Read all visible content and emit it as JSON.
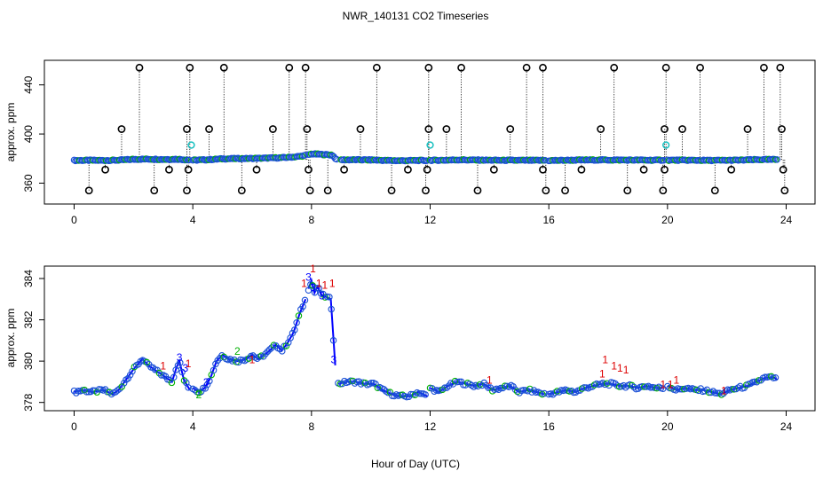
{
  "title": "NWR_140131  CO2 Timeseries",
  "xlabel": "Hour of Day (UTC)",
  "colors": {
    "primary": "#0000ff",
    "ring": "#1a4fd6",
    "green": "#00b000",
    "red": "#dd0000",
    "cyan": "#19c0c0",
    "outlier": "#000000"
  },
  "chart_data": [
    {
      "type": "scatter",
      "panel": "top",
      "title": "",
      "xlabel": "",
      "ylabel": "approx. ppm",
      "xlim": [
        0,
        24
      ],
      "ylim": [
        343,
        460
      ],
      "xticks": [
        0,
        4,
        8,
        12,
        16,
        20,
        24
      ],
      "yticks": [
        360,
        400,
        440
      ],
      "baseline_segments": [
        {
          "x": [
            0.0,
            0.5,
            1.0,
            1.5,
            2.0,
            2.5,
            3.0,
            3.5,
            3.9
          ],
          "y": [
            378.5,
            378.6,
            378.5,
            378.7,
            379.4,
            379.6,
            379.3,
            379.5,
            378.8
          ]
        },
        {
          "x": [
            4.0,
            4.5,
            5.0,
            5.5,
            6.0,
            6.5,
            7.0,
            7.5,
            7.8
          ],
          "y": [
            378.7,
            379.1,
            379.8,
            380.0,
            380.1,
            380.4,
            380.7,
            381.5,
            382.5
          ]
        },
        {
          "x": [
            7.9,
            8.0,
            8.2,
            8.5,
            8.7,
            8.85
          ],
          "y": [
            383.0,
            383.8,
            383.6,
            383.2,
            382.9,
            379.0
          ]
        },
        {
          "x": [
            9.0,
            9.5,
            10.0,
            10.5,
            11.0,
            11.5,
            11.9
          ],
          "y": [
            379.0,
            379.0,
            378.9,
            378.5,
            378.3,
            378.5,
            378.4
          ]
        },
        {
          "x": [
            12.0,
            12.5,
            13.0,
            13.5,
            14.0,
            14.5,
            15.0,
            15.5,
            15.9
          ],
          "y": [
            378.6,
            378.7,
            379.0,
            378.8,
            378.7,
            378.6,
            378.6,
            378.5,
            378.6
          ]
        },
        {
          "x": [
            16.0,
            16.5,
            17.0,
            17.5,
            18.0,
            18.5,
            19.0,
            19.5,
            19.9
          ],
          "y": [
            378.4,
            378.6,
            378.8,
            378.9,
            378.9,
            378.8,
            378.8,
            378.7,
            378.8
          ]
        },
        {
          "x": [
            20.0,
            20.5,
            21.0,
            21.5,
            22.0,
            22.5,
            23.0,
            23.5,
            23.7
          ],
          "y": [
            378.7,
            378.7,
            378.6,
            378.5,
            378.6,
            378.8,
            379.1,
            379.2,
            379.2
          ]
        }
      ],
      "high_outliers": [
        {
          "x": 1.6,
          "y": 404
        },
        {
          "x": 2.2,
          "y": 454
        },
        {
          "x": 3.8,
          "y": 404
        },
        {
          "x": 3.9,
          "y": 454
        },
        {
          "x": 4.55,
          "y": 404
        },
        {
          "x": 5.05,
          "y": 454
        },
        {
          "x": 6.7,
          "y": 404
        },
        {
          "x": 7.25,
          "y": 454
        },
        {
          "x": 7.8,
          "y": 454
        },
        {
          "x": 7.85,
          "y": 404
        },
        {
          "x": 9.65,
          "y": 404
        },
        {
          "x": 10.2,
          "y": 454
        },
        {
          "x": 11.95,
          "y": 404
        },
        {
          "x": 11.95,
          "y": 454
        },
        {
          "x": 12.55,
          "y": 404
        },
        {
          "x": 13.05,
          "y": 454
        },
        {
          "x": 14.7,
          "y": 404
        },
        {
          "x": 15.25,
          "y": 454
        },
        {
          "x": 15.8,
          "y": 454
        },
        {
          "x": 17.75,
          "y": 404
        },
        {
          "x": 18.2,
          "y": 454
        },
        {
          "x": 19.9,
          "y": 404
        },
        {
          "x": 19.95,
          "y": 454
        },
        {
          "x": 20.5,
          "y": 404
        },
        {
          "x": 21.1,
          "y": 454
        },
        {
          "x": 22.7,
          "y": 404
        },
        {
          "x": 23.25,
          "y": 454
        },
        {
          "x": 23.8,
          "y": 454
        },
        {
          "x": 23.85,
          "y": 404
        }
      ],
      "low_outliers": [
        {
          "x": 0.5,
          "y": 354
        },
        {
          "x": 1.05,
          "y": 371
        },
        {
          "x": 2.7,
          "y": 354
        },
        {
          "x": 3.2,
          "y": 371
        },
        {
          "x": 3.8,
          "y": 354
        },
        {
          "x": 3.85,
          "y": 371
        },
        {
          "x": 5.65,
          "y": 354
        },
        {
          "x": 6.15,
          "y": 371
        },
        {
          "x": 7.9,
          "y": 371
        },
        {
          "x": 7.95,
          "y": 354
        },
        {
          "x": 8.55,
          "y": 354
        },
        {
          "x": 9.1,
          "y": 371
        },
        {
          "x": 10.7,
          "y": 354
        },
        {
          "x": 11.25,
          "y": 371
        },
        {
          "x": 11.85,
          "y": 354
        },
        {
          "x": 11.9,
          "y": 371
        },
        {
          "x": 13.6,
          "y": 354
        },
        {
          "x": 14.15,
          "y": 371
        },
        {
          "x": 15.8,
          "y": 371
        },
        {
          "x": 15.9,
          "y": 354
        },
        {
          "x": 16.55,
          "y": 354
        },
        {
          "x": 17.1,
          "y": 371
        },
        {
          "x": 18.65,
          "y": 354
        },
        {
          "x": 19.2,
          "y": 371
        },
        {
          "x": 19.85,
          "y": 354
        },
        {
          "x": 19.9,
          "y": 371
        },
        {
          "x": 21.6,
          "y": 354
        },
        {
          "x": 22.15,
          "y": 371
        },
        {
          "x": 23.9,
          "y": 371
        },
        {
          "x": 23.95,
          "y": 354
        }
      ],
      "cyan_points": [
        {
          "x": 3.95,
          "y": 391
        },
        {
          "x": 12.0,
          "y": 391
        },
        {
          "x": 19.95,
          "y": 391
        }
      ]
    },
    {
      "type": "line",
      "panel": "bottom",
      "title": "",
      "xlabel": "Hour of Day (UTC)",
      "ylabel": "approx. ppm",
      "xlim": [
        0,
        24
      ],
      "ylim": [
        377.6,
        384.6
      ],
      "xticks": [
        0,
        4,
        8,
        12,
        16,
        20,
        24
      ],
      "yticks": [
        378,
        380,
        382,
        384
      ],
      "segments": [
        {
          "x": [
            0.0,
            0.3,
            0.6,
            1.0,
            1.3,
            1.5,
            1.8,
            2.0,
            2.3,
            2.5,
            2.8,
            3.1,
            3.3,
            3.45,
            3.55,
            3.7,
            3.9
          ],
          "y": [
            378.5,
            378.6,
            378.5,
            378.6,
            378.4,
            378.6,
            379.2,
            379.6,
            380.1,
            379.8,
            379.5,
            379.2,
            379.0,
            379.7,
            380.0,
            379.1,
            378.6
          ]
        },
        {
          "x": [
            4.0,
            4.2,
            4.4,
            4.6,
            4.8,
            5.0,
            5.2,
            5.5,
            5.8,
            6.0,
            6.2,
            6.5,
            6.8,
            7.0,
            7.2,
            7.4,
            7.6,
            7.8
          ],
          "y": [
            378.7,
            378.5,
            378.7,
            379.2,
            380.0,
            380.3,
            380.1,
            380.0,
            380.1,
            380.3,
            380.1,
            380.4,
            380.8,
            380.5,
            380.9,
            381.4,
            382.3,
            383.0
          ]
        },
        {
          "x": [
            7.9,
            8.0,
            8.1,
            8.2,
            8.35,
            8.5,
            8.65,
            8.8
          ],
          "y": [
            383.5,
            383.9,
            383.3,
            383.6,
            383.2,
            383.1,
            383.0,
            379.8
          ]
        },
        {
          "x": [
            8.9,
            9.2,
            9.5,
            9.8,
            10.1,
            10.4,
            10.7,
            11.0,
            11.3,
            11.6,
            11.9
          ],
          "y": [
            378.9,
            379.0,
            379.0,
            378.9,
            378.9,
            378.6,
            378.4,
            378.3,
            378.3,
            378.5,
            378.3
          ]
        },
        {
          "x": [
            12.0,
            12.3,
            12.6,
            12.9,
            13.2,
            13.5,
            13.8,
            14.1,
            14.4,
            14.7,
            15.0,
            15.3,
            15.6,
            15.85
          ],
          "y": [
            378.7,
            378.5,
            378.8,
            379.0,
            378.9,
            378.8,
            378.9,
            378.6,
            378.7,
            378.8,
            378.5,
            378.6,
            378.5,
            378.4
          ]
        },
        {
          "x": [
            16.0,
            16.3,
            16.6,
            16.9,
            17.2,
            17.5,
            17.8,
            18.1,
            18.4,
            18.7,
            19.0,
            19.3,
            19.6,
            19.85
          ],
          "y": [
            378.4,
            378.5,
            378.6,
            378.5,
            378.7,
            378.8,
            378.9,
            378.9,
            378.8,
            378.8,
            378.7,
            378.8,
            378.7,
            378.7
          ]
        },
        {
          "x": [
            20.0,
            20.3,
            20.6,
            20.9,
            21.2,
            21.5,
            21.8,
            22.1,
            22.4,
            22.7,
            23.0,
            23.3,
            23.6,
            23.7
          ],
          "y": [
            378.8,
            378.6,
            378.7,
            378.6,
            378.6,
            378.5,
            378.4,
            378.6,
            378.7,
            378.8,
            379.0,
            379.2,
            379.2,
            379.1
          ]
        }
      ],
      "digit_labels": [
        {
          "x": 3.55,
          "y": 380.0,
          "text": "3"
        },
        {
          "x": 3.75,
          "y": 379.5,
          "text": "3"
        },
        {
          "x": 3.85,
          "y": 379.7,
          "text": "1"
        },
        {
          "x": 3.0,
          "y": 379.6,
          "text": "1"
        },
        {
          "x": 4.2,
          "y": 378.2,
          "text": "2"
        },
        {
          "x": 4.45,
          "y": 378.8,
          "text": "3"
        },
        {
          "x": 7.75,
          "y": 383.6,
          "text": "1"
        },
        {
          "x": 8.05,
          "y": 384.3,
          "text": "1"
        },
        {
          "x": 7.9,
          "y": 383.9,
          "text": "3"
        },
        {
          "x": 8.05,
          "y": 383.4,
          "text": "3"
        },
        {
          "x": 8.25,
          "y": 383.6,
          "text": "1"
        },
        {
          "x": 8.45,
          "y": 383.5,
          "text": "1"
        },
        {
          "x": 8.7,
          "y": 383.6,
          "text": "1"
        },
        {
          "x": 8.35,
          "y": 383.0,
          "text": "3"
        },
        {
          "x": 8.75,
          "y": 379.9,
          "text": "3"
        },
        {
          "x": 17.9,
          "y": 379.9,
          "text": "1"
        },
        {
          "x": 18.2,
          "y": 379.6,
          "text": "1"
        },
        {
          "x": 18.4,
          "y": 379.5,
          "text": "1"
        },
        {
          "x": 18.6,
          "y": 379.4,
          "text": "1"
        },
        {
          "x": 17.8,
          "y": 379.2,
          "text": "1"
        },
        {
          "x": 20.3,
          "y": 378.9,
          "text": "1"
        },
        {
          "x": 20.1,
          "y": 378.7,
          "text": "1"
        },
        {
          "x": 19.85,
          "y": 378.7,
          "text": "1"
        },
        {
          "x": 6.0,
          "y": 379.9,
          "text": "1"
        },
        {
          "x": 5.5,
          "y": 380.3,
          "text": "2"
        },
        {
          "x": 14.0,
          "y": 378.9,
          "text": "1"
        },
        {
          "x": 21.9,
          "y": 378.4,
          "text": "1"
        }
      ]
    }
  ]
}
